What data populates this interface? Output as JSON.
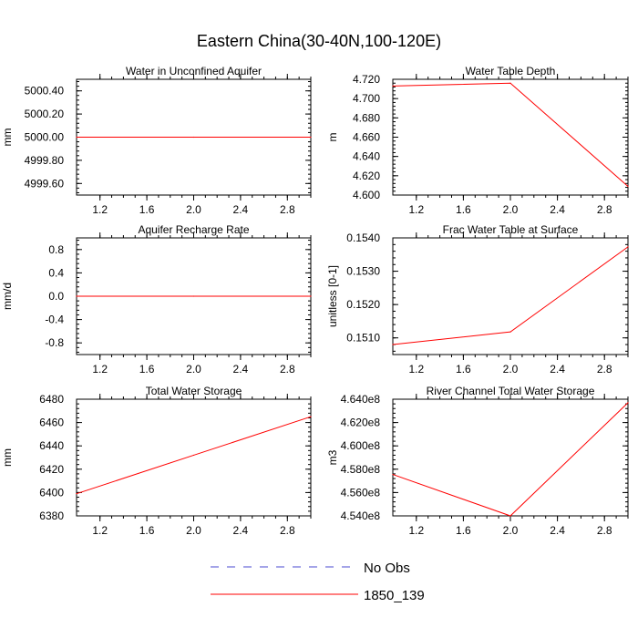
{
  "figure": {
    "title": "Eastern China(30-40N,100-120E)",
    "series_colors": {
      "No Obs": "#4a4ad0",
      "1850_139": "#ff0000"
    }
  },
  "legend": [
    {
      "label": "No Obs",
      "style": "dashed",
      "color": "#4a4ad0"
    },
    {
      "label": "1850_139",
      "style": "solid",
      "color": "#ff0000"
    }
  ],
  "chart_data": [
    {
      "type": "line",
      "title": "Water in Unconfined Aquifer",
      "ylabel": "mm",
      "xlim": [
        1.0,
        3.0
      ],
      "ylim": [
        4999.5,
        5000.5
      ],
      "xticks": [
        "1.2",
        "1.6",
        "2.0",
        "2.4",
        "2.8"
      ],
      "yticks": [
        "4999.60",
        "4999.80",
        "5000.00",
        "5000.20",
        "5000.40"
      ],
      "series": [
        {
          "name": "1850_139",
          "x": [
            1,
            2,
            3
          ],
          "y": [
            5000.0,
            5000.0,
            5000.0
          ]
        }
      ]
    },
    {
      "type": "line",
      "title": "Water Table Depth",
      "ylabel": "m",
      "xlim": [
        1.0,
        3.0
      ],
      "ylim": [
        4.6,
        4.72
      ],
      "xticks": [
        "1.2",
        "1.6",
        "2.0",
        "2.4",
        "2.8"
      ],
      "yticks": [
        "4.600",
        "4.620",
        "4.640",
        "4.660",
        "4.680",
        "4.700",
        "4.720"
      ],
      "series": [
        {
          "name": "1850_139",
          "x": [
            1,
            2,
            3
          ],
          "y": [
            4.713,
            4.716,
            4.609
          ]
        }
      ]
    },
    {
      "type": "line",
      "title": "Aquifer Recharge Rate",
      "ylabel": "mm/d",
      "xlim": [
        1.0,
        3.0
      ],
      "ylim": [
        -1.0,
        1.0
      ],
      "xticks": [
        "1.2",
        "1.6",
        "2.0",
        "2.4",
        "2.8"
      ],
      "yticks": [
        "-0.8",
        "-0.4",
        "0.0",
        "0.4",
        "0.8"
      ],
      "series": [
        {
          "name": "1850_139",
          "x": [
            1,
            2,
            3
          ],
          "y": [
            0.0,
            0.0,
            0.0
          ]
        }
      ]
    },
    {
      "type": "line",
      "title": "Frac Water Table at Surface",
      "ylabel": "unitless [0-1]",
      "xlim": [
        1.0,
        3.0
      ],
      "ylim": [
        0.1505,
        0.154
      ],
      "xticks": [
        "1.2",
        "1.6",
        "2.0",
        "2.4",
        "2.8"
      ],
      "yticks": [
        "0.1510",
        "0.1520",
        "0.1530",
        "0.1540"
      ],
      "series": [
        {
          "name": "1850_139",
          "x": [
            1,
            2,
            3
          ],
          "y": [
            0.1508,
            0.15118,
            0.15373
          ]
        }
      ]
    },
    {
      "type": "line",
      "title": "Total Water Storage",
      "ylabel": "mm",
      "xlim": [
        1.0,
        3.0
      ],
      "ylim": [
        6380,
        6480
      ],
      "xticks": [
        "1.2",
        "1.6",
        "2.0",
        "2.4",
        "2.8"
      ],
      "yticks": [
        "6380",
        "6400",
        "6420",
        "6440",
        "6460",
        "6480"
      ],
      "series": [
        {
          "name": "1850_139",
          "x": [
            1,
            2,
            3
          ],
          "y": [
            6399,
            6432,
            6465
          ]
        }
      ]
    },
    {
      "type": "line",
      "title": "River Channel Total Water Storage",
      "ylabel": "m3",
      "xlim": [
        1.0,
        3.0
      ],
      "ylim": [
        454000000,
        464000000
      ],
      "xticks": [
        "1.2",
        "1.6",
        "2.0",
        "2.4",
        "2.8"
      ],
      "yticks": [
        "4.540e8",
        "4.560e8",
        "4.580e8",
        "4.600e8",
        "4.620e8",
        "4.640e8"
      ],
      "series": [
        {
          "name": "1850_139",
          "x": [
            1,
            2,
            3
          ],
          "y": [
            457550000,
            454000000,
            463700000
          ]
        }
      ]
    }
  ]
}
